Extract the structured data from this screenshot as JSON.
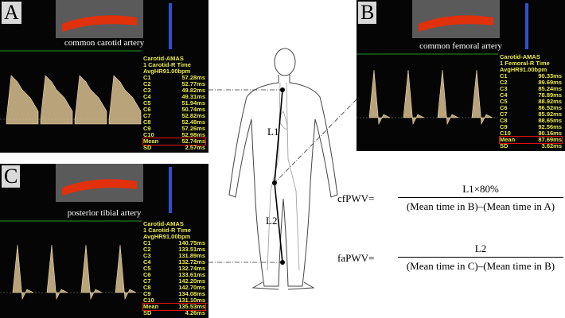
{
  "panels": [
    {
      "letter": "A",
      "caption": "common carotid artery",
      "header": [
        "Carotid-AMAS",
        "1 Carotid-R Time",
        "AvgHR91.00bpm"
      ],
      "rows": [
        [
          "C1",
          "57.28ms"
        ],
        [
          "C2",
          "52.77ms"
        ],
        [
          "C3",
          "49.82ms"
        ],
        [
          "C4",
          "49.31ms"
        ],
        [
          "C5",
          "51.94ms"
        ],
        [
          "C6",
          "50.74ms"
        ],
        [
          "C7",
          "52.82ms"
        ],
        [
          "C8",
          "52.48ms"
        ],
        [
          "C9",
          "57.26ms"
        ],
        [
          "C10",
          "52.98ms"
        ]
      ],
      "mean": [
        "Mean",
        "52.74ms"
      ],
      "sd": [
        "SD",
        "2.57ms"
      ]
    },
    {
      "letter": "B",
      "caption": "common femoral artery",
      "header": [
        "Carotid-AMAS",
        "1 Femoral-R Time",
        "AvgHR91.00bpm"
      ],
      "rows": [
        [
          "C1",
          "90.33ms"
        ],
        [
          "C2",
          "89.69ms"
        ],
        [
          "C3",
          "85.24ms"
        ],
        [
          "C4",
          "78.89ms"
        ],
        [
          "C5",
          "88.92ms"
        ],
        [
          "C6",
          "86.52ms"
        ],
        [
          "C7",
          "85.92ms"
        ],
        [
          "C8",
          "88.65ms"
        ],
        [
          "C9",
          "92.56ms"
        ],
        [
          "C10",
          "90.16ms"
        ]
      ],
      "mean": [
        "Mean",
        "87.69ms"
      ],
      "sd": [
        "SD",
        "3.62ms"
      ]
    },
    {
      "letter": "C",
      "caption": "posterior tibial artery",
      "header": [
        "Carotid-AMAS",
        "1 Carotid-R Time",
        "AvgHR91.00bpm"
      ],
      "rows": [
        [
          "C1",
          "140.75ms"
        ],
        [
          "C2",
          "133.51ms"
        ],
        [
          "C3",
          "131.89ms"
        ],
        [
          "C4",
          "132.72ms"
        ],
        [
          "C5",
          "132.74ms"
        ],
        [
          "C6",
          "133.61ms"
        ],
        [
          "C7",
          "142.20ms"
        ],
        [
          "C8",
          "142.70ms"
        ],
        [
          "C9",
          "134.08ms"
        ],
        [
          "C10",
          "131.10ms"
        ]
      ],
      "mean": [
        "Mean",
        "135.53ms"
      ],
      "sd": [
        "SD",
        "4.26ms"
      ]
    }
  ],
  "body": {
    "l1": "L1",
    "l2": "L2"
  },
  "formulas": [
    {
      "lhs": "cfPWV=",
      "numerator": "L1×80%",
      "denominator": "(Mean time in B)–(Mean time in A)"
    },
    {
      "lhs": "faPWV=",
      "numerator": "L2",
      "denominator": "(Mean time in C)–(Mean time in B)"
    }
  ]
}
